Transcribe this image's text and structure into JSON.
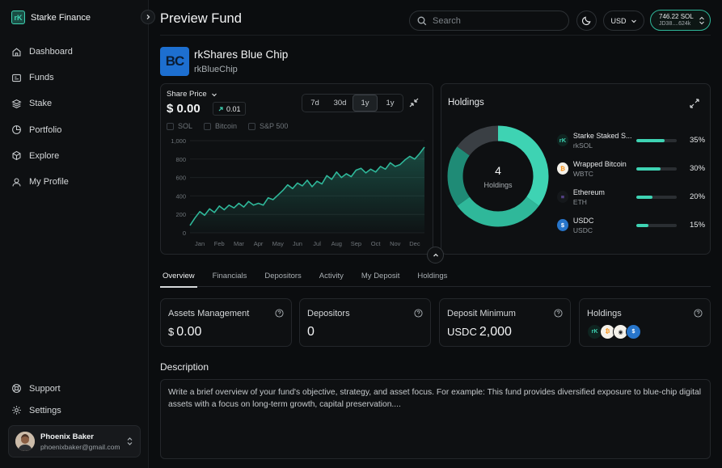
{
  "brand": {
    "name": "Starke Finance",
    "logo_icon": "starke-logo-icon"
  },
  "sidebar": {
    "items": [
      {
        "label": "Dashboard",
        "icon": "home-icon"
      },
      {
        "label": "Funds",
        "icon": "funds-icon"
      },
      {
        "label": "Stake",
        "icon": "stack-icon"
      },
      {
        "label": "Portfolio",
        "icon": "pie-chart-icon"
      },
      {
        "label": "Explore",
        "icon": "cube-icon"
      },
      {
        "label": "My Profile",
        "icon": "user-icon"
      }
    ],
    "bottom": [
      {
        "label": "Support",
        "icon": "help-circle-icon"
      },
      {
        "label": "Settings",
        "icon": "gear-icon"
      }
    ],
    "profile": {
      "name": "Phoenix Baker",
      "email": "phoenixbaker@gmail.com"
    }
  },
  "header": {
    "title": "Preview Fund",
    "search_placeholder": "Search",
    "currency": "USD",
    "wallet_balance": "746.22 SOL",
    "wallet_address": "JD38....624k"
  },
  "fund": {
    "logo_text": "BC",
    "name": "rkShares Blue Chip",
    "ticker": "rkBlueChip"
  },
  "share_price": {
    "label": "Share Price",
    "value": "$ 0.00",
    "change": "0.01",
    "ranges": [
      "7d",
      "30d",
      "1y",
      "1y"
    ],
    "active_range": 2,
    "legend": [
      "SOL",
      "Bitcoin",
      "S&P 500"
    ]
  },
  "chart_data": {
    "type": "area",
    "title": "",
    "xlabel": "",
    "ylabel": "",
    "ylim": [
      0,
      1000
    ],
    "y_ticks": [
      0,
      200,
      400,
      600,
      800,
      1000
    ],
    "y_tick_labels": [
      "0",
      "200",
      "400",
      "600",
      "800",
      "1,000"
    ],
    "categories": [
      "Jan",
      "Feb",
      "Mar",
      "Apr",
      "May",
      "Jun",
      "Jul",
      "Aug",
      "Sep",
      "Oct",
      "Nov",
      "Dec"
    ],
    "series": [
      {
        "x": [
          0,
          0.25,
          0.5,
          0.75,
          1.0,
          1.25,
          1.5,
          1.75,
          2.0,
          2.25,
          2.5,
          2.75,
          3.0,
          3.25,
          3.5,
          3.75,
          4.0,
          4.25,
          4.5,
          4.75,
          5.0,
          5.25,
          5.5,
          5.75,
          6.0,
          6.25,
          6.5,
          6.75,
          7.0,
          7.25,
          7.5,
          7.75,
          8.0,
          8.25,
          8.5,
          8.75,
          9.0,
          9.25,
          9.5,
          9.75,
          10.0,
          10.25,
          10.5,
          10.75,
          11.0,
          11.25,
          11.5,
          11.75,
          12.0
        ],
        "values": [
          80,
          160,
          230,
          190,
          260,
          220,
          290,
          250,
          300,
          270,
          320,
          280,
          340,
          300,
          320,
          300,
          380,
          360,
          410,
          460,
          520,
          480,
          540,
          510,
          570,
          500,
          560,
          530,
          620,
          580,
          660,
          600,
          640,
          610,
          680,
          700,
          650,
          690,
          660,
          720,
          690,
          760,
          720,
          740,
          790,
          830,
          800,
          860,
          930
        ]
      }
    ],
    "color": "#2fb89a"
  },
  "holdings": {
    "title": "Holdings",
    "count": "4",
    "count_label": "Holdings",
    "items": [
      {
        "name": "Starke Staked S...",
        "ticker": "rkSOL",
        "percent": "35%",
        "value": 35,
        "icon": "rksol-icon",
        "icon_text": "rK",
        "icon_color": "#3ed3b3",
        "icon_bg": "#0f2420"
      },
      {
        "name": "Wrapped Bitcoin",
        "ticker": "WBTC",
        "percent": "30%",
        "value": 30,
        "icon": "wbtc-icon",
        "icon_text": "₿",
        "icon_color": "#f7931a",
        "icon_bg": "#f4f1ea"
      },
      {
        "name": "Ethereum",
        "ticker": "ETH",
        "percent": "20%",
        "value": 20,
        "icon": "eth-icon",
        "icon_text": "≡",
        "icon_color": "#8f67e8",
        "icon_bg": "#15181b"
      },
      {
        "name": "USDC",
        "ticker": "USDC",
        "percent": "15%",
        "value": 15,
        "icon": "usdc-icon",
        "icon_text": "$",
        "icon_color": "#ffffff",
        "icon_bg": "#2775ca"
      }
    ],
    "donut_colors": [
      "#3ed3b3",
      "#2fb89a",
      "#1f8b76",
      "#3a3f44"
    ]
  },
  "tabs": [
    "Overview",
    "Financials",
    "Depositors",
    "Activity",
    "My Deposit",
    "Holdings"
  ],
  "active_tab": 0,
  "stats": [
    {
      "label": "Assets Management",
      "prefix": "$",
      "value": "0.00"
    },
    {
      "label": "Depositors",
      "prefix": "",
      "value": "0"
    },
    {
      "label": "Deposit Minimum",
      "prefix": "USDC",
      "value": "2,000"
    },
    {
      "label": "Holdings",
      "prefix": "",
      "value": ""
    }
  ],
  "description": {
    "label": "Description",
    "text": "Write a brief overview of your fund's objective, strategy, and asset focus. For example: This fund provides diversified exposure to blue-chip digital assets with a focus on long-term growth, capital preservation...."
  }
}
